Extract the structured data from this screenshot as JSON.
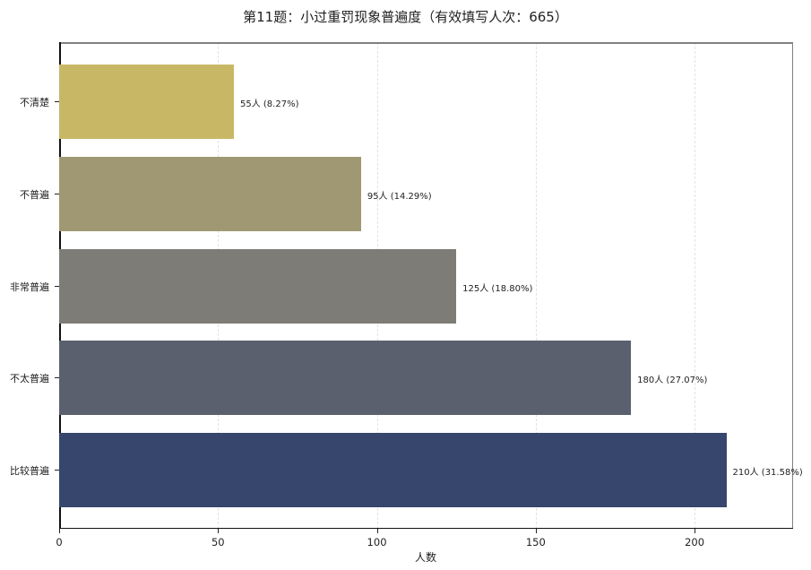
{
  "chart_data": {
    "type": "bar",
    "orientation": "horizontal",
    "title": "第11题：小过重罚现象普遍度（有效填写人次：665）",
    "xlabel": "人数",
    "ylabel": "",
    "xlim": [
      0,
      231
    ],
    "xticks": [
      0,
      50,
      100,
      150,
      200
    ],
    "xtick_labels": [
      "0",
      "50",
      "100",
      "150",
      "200"
    ],
    "grid": {
      "x": true,
      "y": false,
      "style": "dashed"
    },
    "legend": null,
    "categories": [
      "不清楚",
      "不普遍",
      "非常普遍",
      "不太普遍",
      "比较普遍"
    ],
    "values": [
      55,
      95,
      125,
      180,
      210
    ],
    "percentages": [
      8.27,
      14.29,
      18.8,
      27.07,
      31.58
    ],
    "bar_labels": [
      "55人 (8.27%)",
      "95人 (14.29%)",
      "125人 (18.80%)",
      "180人 (27.07%)",
      "210人 (31.58%)"
    ],
    "colors": [
      "#c8b865",
      "#a09872",
      "#7e7c77",
      "#5b606e",
      "#36466c"
    ],
    "total": 665
  },
  "title": "第11题：小过重罚现象普遍度（有效填写人次：665）",
  "xlabel": "人数",
  "xticks": [
    "0",
    "50",
    "100",
    "150",
    "200"
  ],
  "bars": [
    {
      "category": "不清楚",
      "value": 55,
      "label": "55人 (8.27%)",
      "color": "#c8b865"
    },
    {
      "category": "不普遍",
      "value": 95,
      "label": "95人 (14.29%)",
      "color": "#a09872"
    },
    {
      "category": "非常普遍",
      "value": 125,
      "label": "125人 (18.80%)",
      "color": "#7e7c77"
    },
    {
      "category": "不太普遍",
      "value": 180,
      "label": "180人 (27.07%)",
      "color": "#5b606e"
    },
    {
      "category": "比较普遍",
      "value": 210,
      "label": "210人 (31.58%)",
      "color": "#36466c"
    }
  ]
}
